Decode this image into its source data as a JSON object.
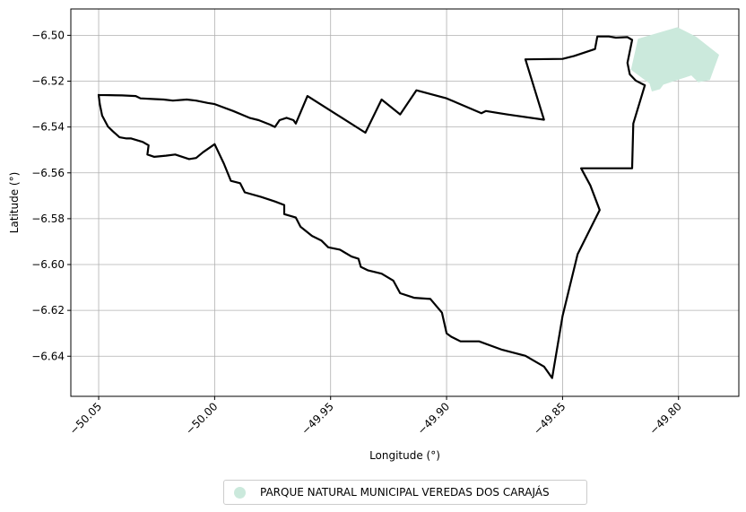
{
  "chart_data": {
    "type": "map",
    "xlabel": "Longitude (°)",
    "ylabel": "Latitude (°)",
    "xlim": [
      -50.062,
      -49.774
    ],
    "ylim": [
      -6.6575,
      -6.4885
    ],
    "x_ticks": [
      -50.05,
      -50.0,
      -49.95,
      -49.9,
      -49.85,
      -49.8
    ],
    "x_tick_labels": [
      "−50.05",
      "−50.00",
      "−49.95",
      "−49.90",
      "−49.85",
      "−49.80"
    ],
    "y_ticks": [
      -6.5,
      -6.52,
      -6.54,
      -6.56,
      -6.58,
      -6.6,
      -6.62,
      -6.64
    ],
    "y_tick_labels": [
      "−6.50",
      "−6.52",
      "−6.54",
      "−6.56",
      "−6.58",
      "−6.60",
      "−6.62",
      "−6.64"
    ],
    "grid": true,
    "legend_position": "bottom-center",
    "legend": [
      {
        "label": "PARQUE NATURAL MUNICIPAL VEREDAS DOS CARAJÁS",
        "color": "#cbe9dc",
        "marker": "circle"
      }
    ],
    "boundary_outline": {
      "color": "#000000",
      "points": [
        [
          -50.05,
          -6.526
        ],
        [
          -50.04,
          -6.5262
        ],
        [
          -50.034,
          -6.5265
        ],
        [
          -50.032,
          -6.5275
        ],
        [
          -50.026,
          -6.5278
        ],
        [
          -50.022,
          -6.528
        ],
        [
          -50.018,
          -6.5285
        ],
        [
          -50.012,
          -6.528
        ],
        [
          -50.008,
          -6.5285
        ],
        [
          -50.003,
          -6.5295
        ],
        [
          -50.0,
          -6.53
        ],
        [
          -49.992,
          -6.533
        ],
        [
          -49.985,
          -6.536
        ],
        [
          -49.981,
          -6.537
        ],
        [
          -49.976,
          -6.539
        ],
        [
          -49.974,
          -6.54
        ],
        [
          -49.972,
          -6.537
        ],
        [
          -49.969,
          -6.536
        ],
        [
          -49.966,
          -6.537
        ],
        [
          -49.965,
          -6.5385
        ],
        [
          -49.96,
          -6.5265
        ],
        [
          -49.935,
          -6.5425
        ],
        [
          -49.928,
          -6.528
        ],
        [
          -49.92,
          -6.5345
        ],
        [
          -49.913,
          -6.524
        ],
        [
          -49.9,
          -6.5275
        ],
        [
          -49.885,
          -6.534
        ],
        [
          -49.883,
          -6.533
        ],
        [
          -49.874,
          -6.5345
        ],
        [
          -49.858,
          -6.5368
        ],
        [
          -49.866,
          -6.5105
        ],
        [
          -49.85,
          -6.5103
        ],
        [
          -49.845,
          -6.509
        ],
        [
          -49.836,
          -6.506
        ],
        [
          -49.835,
          -6.5005
        ],
        [
          -49.83,
          -6.5005
        ],
        [
          -49.827,
          -6.501
        ],
        [
          -49.822,
          -6.5008
        ],
        [
          -49.82,
          -6.502
        ],
        [
          -49.822,
          -6.512
        ],
        [
          -49.821,
          -6.517
        ],
        [
          -49.8185,
          -6.5197
        ],
        [
          -49.8145,
          -6.5218
        ],
        [
          -49.8195,
          -6.5385
        ],
        [
          -49.82,
          -6.558
        ],
        [
          -49.842,
          -6.558
        ],
        [
          -49.838,
          -6.5655
        ],
        [
          -49.834,
          -6.5762
        ],
        [
          -49.8435,
          -6.5955
        ],
        [
          -49.85,
          -6.6225
        ],
        [
          -49.8545,
          -6.6495
        ],
        [
          -49.858,
          -6.6445
        ],
        [
          -49.866,
          -6.6398
        ],
        [
          -49.876,
          -6.6372
        ],
        [
          -49.886,
          -6.6335
        ],
        [
          -49.894,
          -6.6335
        ],
        [
          -49.898,
          -6.6315
        ],
        [
          -49.9,
          -6.63
        ],
        [
          -49.902,
          -6.621
        ],
        [
          -49.907,
          -6.615
        ],
        [
          -49.914,
          -6.6145
        ],
        [
          -49.92,
          -6.6125
        ],
        [
          -49.923,
          -6.607
        ],
        [
          -49.928,
          -6.604
        ],
        [
          -49.934,
          -6.6025
        ],
        [
          -49.937,
          -6.601
        ],
        [
          -49.938,
          -6.5975
        ],
        [
          -49.941,
          -6.5965
        ],
        [
          -49.946,
          -6.5935
        ],
        [
          -49.951,
          -6.5925
        ],
        [
          -49.954,
          -6.5895
        ],
        [
          -49.958,
          -6.5875
        ],
        [
          -49.963,
          -6.5835
        ],
        [
          -49.965,
          -6.5795
        ],
        [
          -49.97,
          -6.578
        ],
        [
          -49.97,
          -6.574
        ],
        [
          -49.974,
          -6.5725
        ],
        [
          -49.98,
          -6.5705
        ],
        [
          -49.987,
          -6.5685
        ],
        [
          -49.989,
          -6.5645
        ],
        [
          -49.993,
          -6.5635
        ],
        [
          -49.996,
          -6.556
        ],
        [
          -50.0,
          -6.5475
        ],
        [
          -50.005,
          -6.551
        ],
        [
          -50.008,
          -6.5535
        ],
        [
          -50.011,
          -6.554
        ],
        [
          -50.017,
          -6.552
        ],
        [
          -50.021,
          -6.5525
        ],
        [
          -50.026,
          -6.553
        ],
        [
          -50.029,
          -6.552
        ],
        [
          -50.0285,
          -6.548
        ],
        [
          -50.031,
          -6.5465
        ],
        [
          -50.036,
          -6.545
        ],
        [
          -50.038,
          -6.545
        ],
        [
          -50.041,
          -6.5445
        ],
        [
          -50.044,
          -6.5418
        ],
        [
          -50.046,
          -6.5398
        ],
        [
          -50.0485,
          -6.535
        ],
        [
          -50.0495,
          -6.53
        ],
        [
          -50.05,
          -6.526
        ]
      ]
    },
    "park_polygon": {
      "color": "#cbe9dc",
      "points": [
        [
          -49.8175,
          -6.5015
        ],
        [
          -49.8005,
          -6.4965
        ],
        [
          -49.7925,
          -6.5005
        ],
        [
          -49.7825,
          -6.5085
        ],
        [
          -49.7865,
          -6.5195
        ],
        [
          -49.7915,
          -6.5205
        ],
        [
          -49.7945,
          -6.5175
        ],
        [
          -49.8065,
          -6.5215
        ],
        [
          -49.808,
          -6.5235
        ],
        [
          -49.8115,
          -6.5245
        ],
        [
          -49.8125,
          -6.521
        ],
        [
          -49.8205,
          -6.515
        ]
      ]
    }
  }
}
